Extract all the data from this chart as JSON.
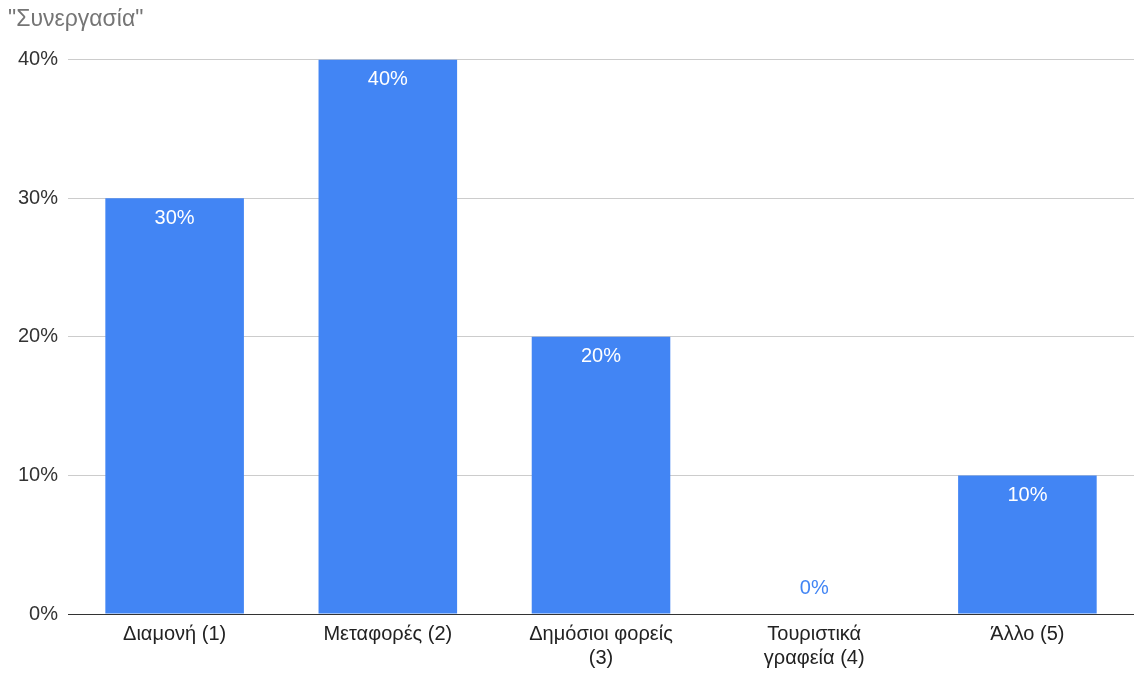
{
  "chart_data": {
    "type": "bar",
    "title": "\"Συνεργασία\"",
    "categories": [
      "Διαμονή (1)",
      "Μεταφορές (2)",
      "Δημόσιοι φορείς (3)",
      "Τουριστικά γραφεία (4)",
      "Άλλο (5)"
    ],
    "values": [
      30,
      40,
      20,
      0,
      10
    ],
    "value_labels": [
      "30%",
      "40%",
      "20%",
      "0%",
      "10%"
    ],
    "color": "#4285f4",
    "ylim": [
      0,
      40
    ],
    "yticks": [
      {
        "value": 0,
        "label": "0%"
      },
      {
        "value": 10,
        "label": "10%"
      },
      {
        "value": 20,
        "label": "20%"
      },
      {
        "value": 30,
        "label": "30%"
      },
      {
        "value": 40,
        "label": "40%"
      }
    ],
    "grid": "y",
    "legend": false
  }
}
